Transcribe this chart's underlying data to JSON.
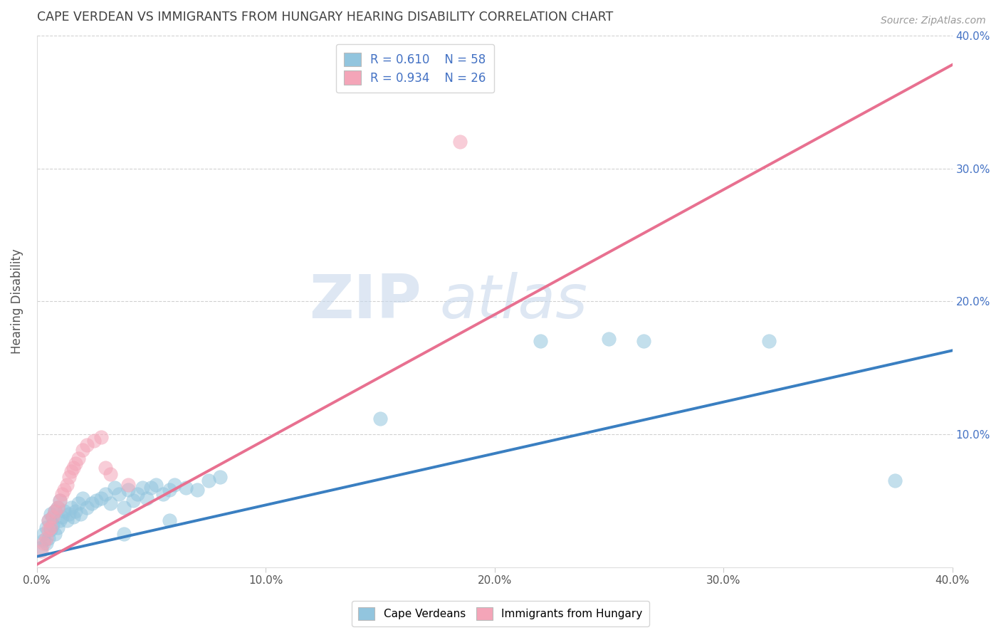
{
  "title": "CAPE VERDEAN VS IMMIGRANTS FROM HUNGARY HEARING DISABILITY CORRELATION CHART",
  "source": "Source: ZipAtlas.com",
  "ylabel": "Hearing Disability",
  "xlim": [
    0.0,
    0.4
  ],
  "ylim": [
    0.0,
    0.4
  ],
  "xtick_labels": [
    "0.0%",
    "10.0%",
    "20.0%",
    "30.0%",
    "40.0%"
  ],
  "xtick_vals": [
    0.0,
    0.1,
    0.2,
    0.3,
    0.4
  ],
  "ytick_labels": [
    "10.0%",
    "20.0%",
    "30.0%",
    "40.0%"
  ],
  "ytick_vals": [
    0.1,
    0.2,
    0.3,
    0.4
  ],
  "blue_color": "#92c5de",
  "pink_color": "#f4a5b8",
  "blue_line_color": "#3a7fc1",
  "pink_line_color": "#e87090",
  "legend_r_blue": "R = 0.610",
  "legend_n_blue": "N = 58",
  "legend_r_pink": "R = 0.934",
  "legend_n_pink": "N = 26",
  "watermark_zip": "ZIP",
  "watermark_atlas": "atlas",
  "blue_scatter_x": [
    0.002,
    0.003,
    0.003,
    0.004,
    0.004,
    0.005,
    0.005,
    0.006,
    0.006,
    0.007,
    0.007,
    0.008,
    0.008,
    0.009,
    0.009,
    0.01,
    0.01,
    0.011,
    0.012,
    0.013,
    0.014,
    0.015,
    0.016,
    0.017,
    0.018,
    0.019,
    0.02,
    0.022,
    0.024,
    0.026,
    0.028,
    0.03,
    0.032,
    0.034,
    0.036,
    0.038,
    0.04,
    0.042,
    0.044,
    0.046,
    0.048,
    0.05,
    0.052,
    0.055,
    0.058,
    0.06,
    0.065,
    0.07,
    0.075,
    0.08,
    0.15,
    0.22,
    0.25,
    0.265,
    0.32,
    0.375,
    0.058,
    0.038
  ],
  "blue_scatter_y": [
    0.015,
    0.02,
    0.025,
    0.018,
    0.03,
    0.022,
    0.035,
    0.028,
    0.04,
    0.032,
    0.038,
    0.025,
    0.042,
    0.03,
    0.045,
    0.035,
    0.05,
    0.038,
    0.042,
    0.035,
    0.04,
    0.045,
    0.038,
    0.042,
    0.048,
    0.04,
    0.052,
    0.045,
    0.048,
    0.05,
    0.052,
    0.055,
    0.048,
    0.06,
    0.055,
    0.045,
    0.058,
    0.05,
    0.055,
    0.06,
    0.052,
    0.06,
    0.062,
    0.055,
    0.058,
    0.062,
    0.06,
    0.058,
    0.065,
    0.068,
    0.112,
    0.17,
    0.172,
    0.17,
    0.17,
    0.065,
    0.035,
    0.025
  ],
  "pink_scatter_x": [
    0.002,
    0.003,
    0.004,
    0.005,
    0.005,
    0.006,
    0.007,
    0.008,
    0.009,
    0.01,
    0.011,
    0.012,
    0.013,
    0.014,
    0.015,
    0.016,
    0.017,
    0.018,
    0.02,
    0.022,
    0.025,
    0.028,
    0.03,
    0.032,
    0.04,
    0.185
  ],
  "pink_scatter_y": [
    0.012,
    0.018,
    0.022,
    0.028,
    0.035,
    0.03,
    0.038,
    0.042,
    0.045,
    0.05,
    0.055,
    0.058,
    0.062,
    0.068,
    0.072,
    0.075,
    0.078,
    0.082,
    0.088,
    0.092,
    0.095,
    0.098,
    0.075,
    0.07,
    0.062,
    0.32
  ],
  "blue_regline_x": [
    0.0,
    0.4
  ],
  "blue_regline_y": [
    0.008,
    0.163
  ],
  "pink_regline_x": [
    0.0,
    0.4
  ],
  "pink_regline_y": [
    0.002,
    0.378
  ],
  "background_color": "#ffffff",
  "grid_color": "#cccccc",
  "title_color": "#404040",
  "axis_label_color": "#555555"
}
